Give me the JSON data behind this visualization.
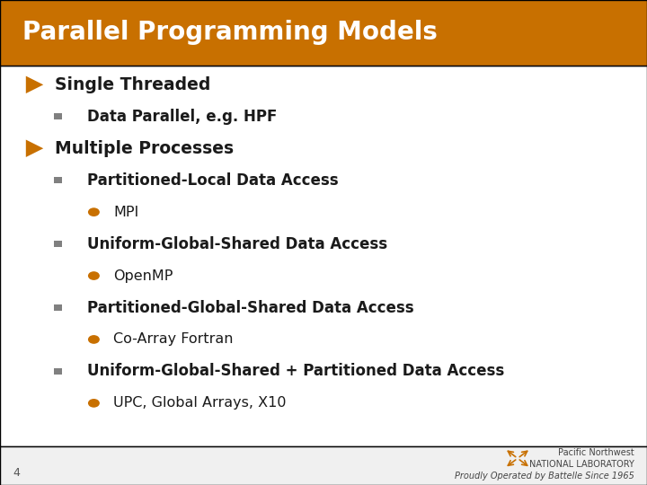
{
  "title": "Parallel Programming Models",
  "title_bg_color": "#C87000",
  "title_text_color": "#FFFFFF",
  "slide_bg_color": "#F0F0F0",
  "content_bg_color": "#FFFFFF",
  "arrow_color": "#C87000",
  "square_color": "#808080",
  "bullet_color": "#C87000",
  "text_color": "#1A1A1A",
  "footer_text": "Proudly Operated by Battelle Since 1965",
  "footer_logo_text": "Pacific Northwest\nNATIONAL LABORATORY",
  "slide_number": "4",
  "items": [
    {
      "level": 1,
      "type": "arrow",
      "text": "Single Threaded"
    },
    {
      "level": 2,
      "type": "square",
      "text": "Data Parallel, e.g. HPF"
    },
    {
      "level": 1,
      "type": "arrow",
      "text": "Multiple Processes"
    },
    {
      "level": 2,
      "type": "square",
      "text": "Partitioned-Local Data Access"
    },
    {
      "level": 3,
      "type": "bullet",
      "text": "MPI"
    },
    {
      "level": 2,
      "type": "square",
      "text": "Uniform-Global-Shared Data Access"
    },
    {
      "level": 3,
      "type": "bullet",
      "text": "OpenMP"
    },
    {
      "level": 2,
      "type": "square",
      "text": "Partitioned-Global-Shared Data Access"
    },
    {
      "level": 3,
      "type": "bullet",
      "text": "Co-Array Fortran"
    },
    {
      "level": 2,
      "type": "square",
      "text": "Uniform-Global-Shared + Partitioned Data Access"
    },
    {
      "level": 3,
      "type": "bullet",
      "text": "UPC, Global Arrays, X10"
    }
  ]
}
